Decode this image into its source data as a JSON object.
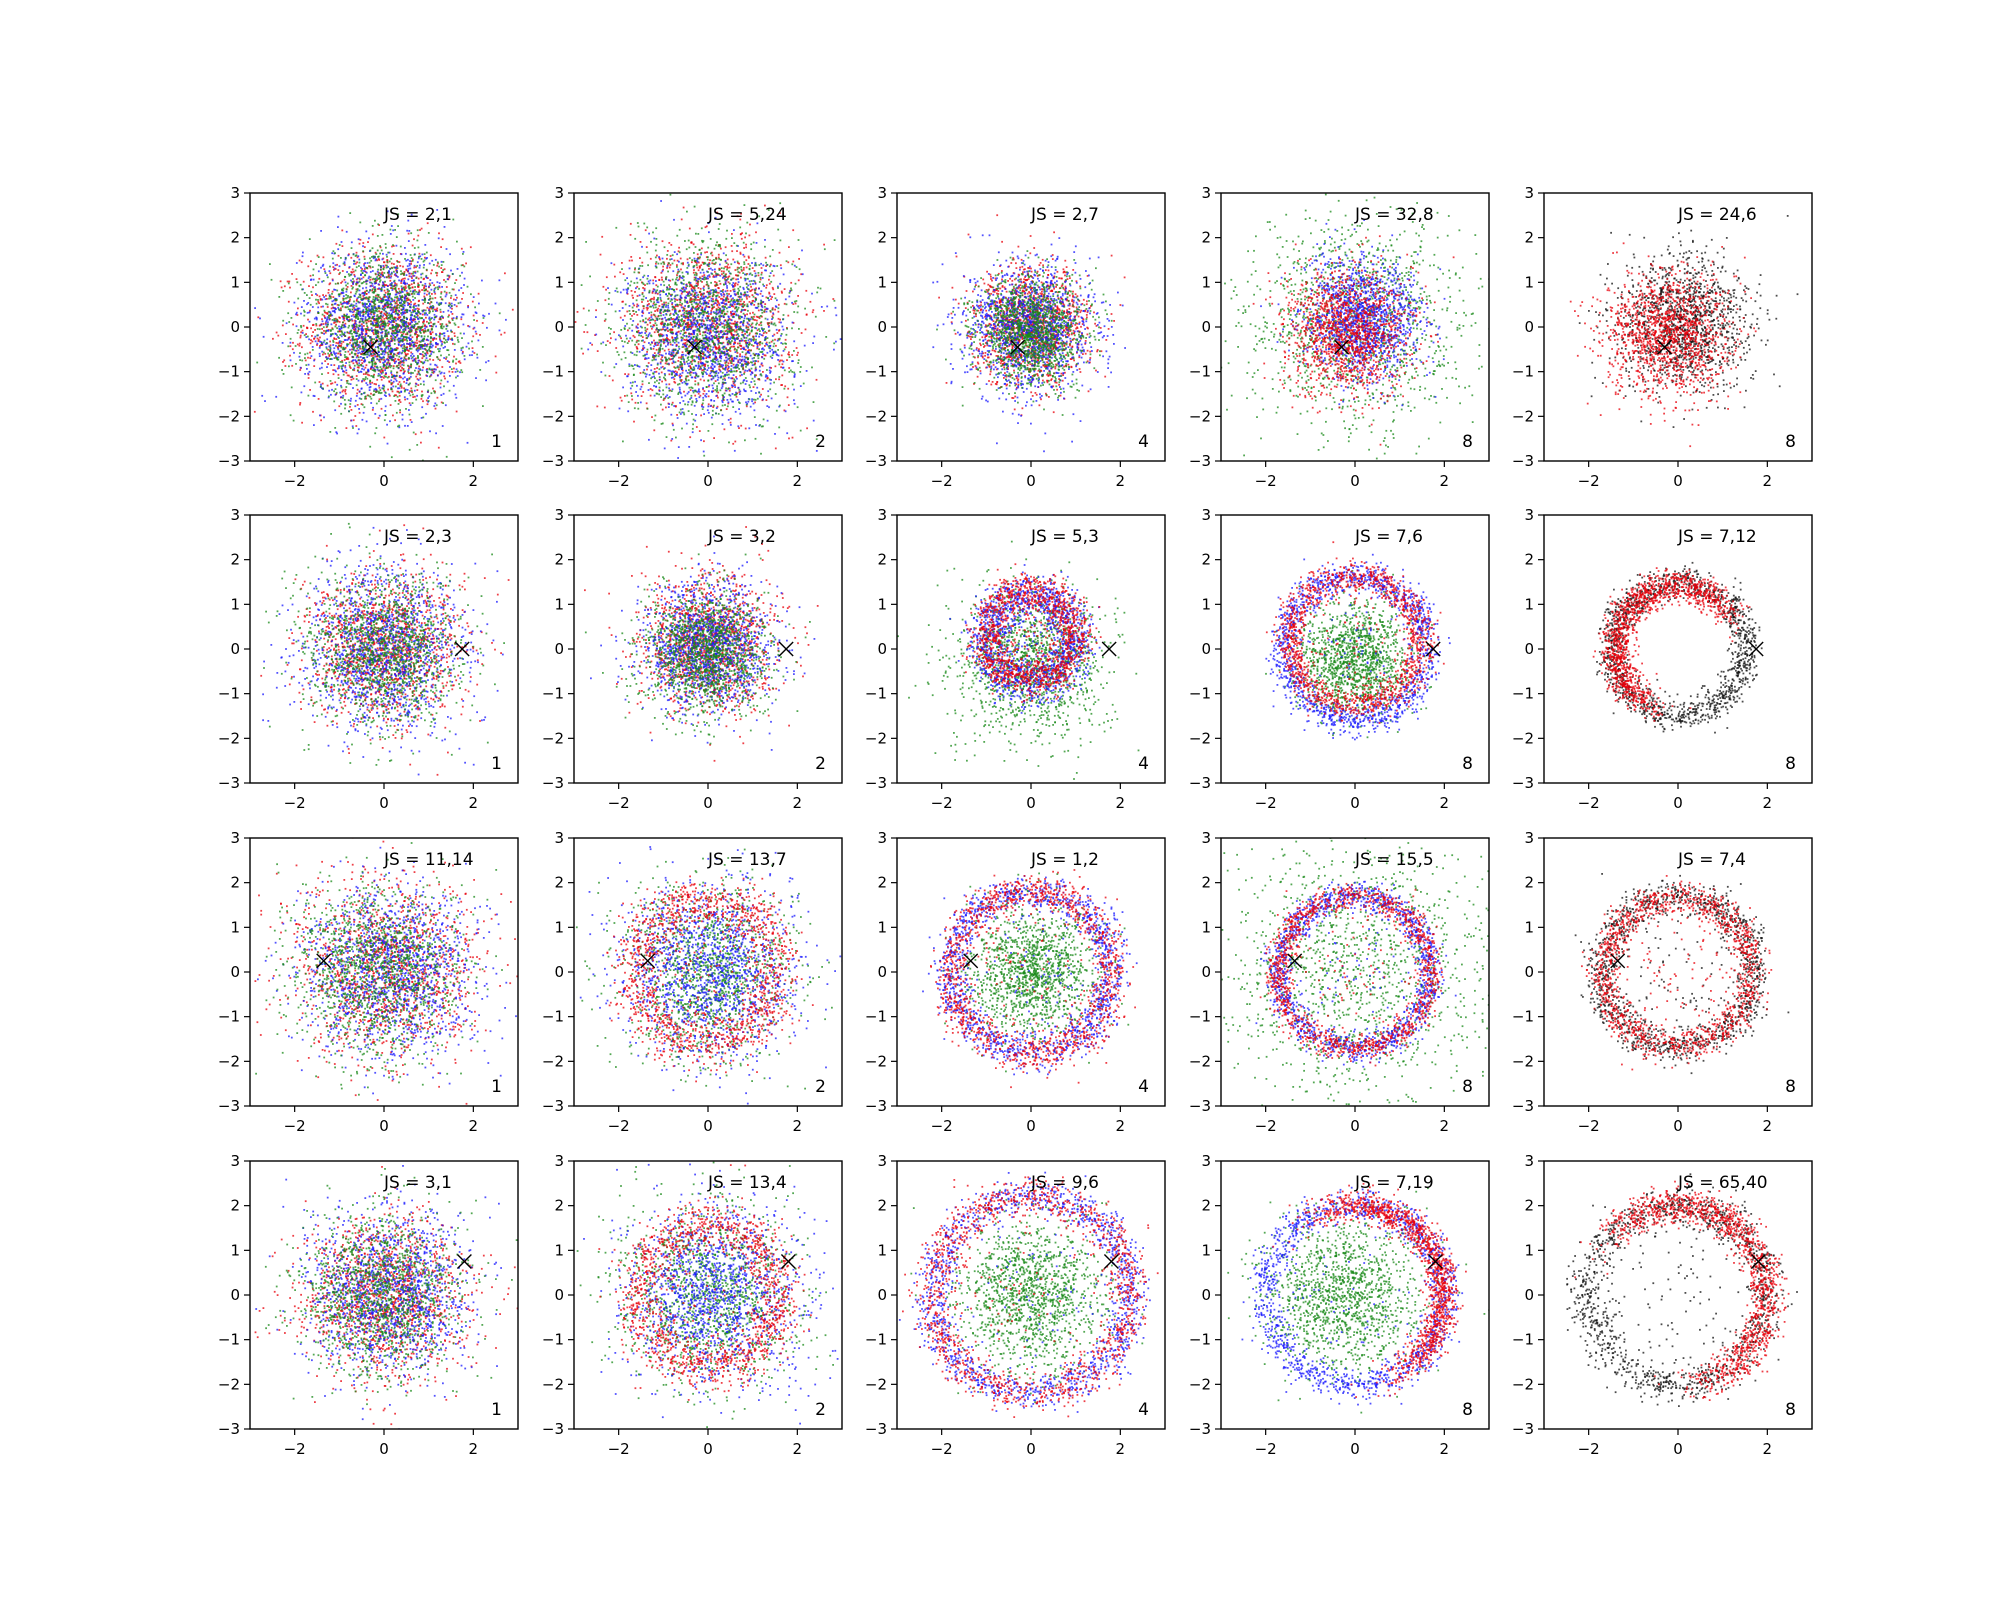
{
  "colors": {
    "red": "#e8000b",
    "blue": "#1a1aff",
    "green": "#1a8a1a",
    "black": "#111111"
  },
  "chart_data": [
    {
      "type": "scatter",
      "row": 1,
      "col": 1,
      "annotation": "JS = 2,1",
      "corner_label": "1",
      "xlim": [
        -3,
        3
      ],
      "ylim": [
        -3,
        3
      ],
      "xticks": [
        -2,
        0,
        2
      ],
      "yticks": [
        -3,
        -2,
        -1,
        0,
        1,
        2,
        3
      ],
      "marker": {
        "x": -0.3,
        "y": -0.45
      },
      "series": [
        {
          "color": "red",
          "shape": "disk",
          "center": [
            0,
            0
          ],
          "sigma": 0.9
        },
        {
          "color": "blue",
          "shape": "disk",
          "center": [
            0,
            0
          ],
          "sigma": 0.9
        },
        {
          "color": "green",
          "shape": "disk",
          "center": [
            0,
            0
          ],
          "sigma": 0.85
        }
      ]
    },
    {
      "type": "scatter",
      "row": 1,
      "col": 2,
      "annotation": "JS = 5,24",
      "corner_label": "2",
      "xlim": [
        -3,
        3
      ],
      "ylim": [
        -3,
        3
      ],
      "xticks": [
        -2,
        0,
        2
      ],
      "yticks": [
        -3,
        -2,
        -1,
        0,
        1,
        2,
        3
      ],
      "marker": {
        "x": -0.3,
        "y": -0.45
      },
      "series": [
        {
          "color": "red",
          "shape": "disk",
          "center": [
            0,
            0.1
          ],
          "sigma": 0.95
        },
        {
          "color": "blue",
          "shape": "disk",
          "center": [
            0,
            -0.2
          ],
          "sigma": 0.9
        },
        {
          "color": "green",
          "shape": "disk",
          "center": [
            0,
            0
          ],
          "sigma": 1.0
        }
      ]
    },
    {
      "type": "scatter",
      "row": 1,
      "col": 3,
      "annotation": "JS = 2,7",
      "corner_label": "4",
      "xlim": [
        -3,
        3
      ],
      "ylim": [
        -3,
        3
      ],
      "xticks": [
        -2,
        0,
        2
      ],
      "yticks": [
        -3,
        -2,
        -1,
        0,
        1,
        2,
        3
      ],
      "marker": {
        "x": -0.3,
        "y": -0.45
      },
      "series": [
        {
          "color": "red",
          "shape": "disk",
          "center": [
            0,
            0
          ],
          "sigma": 0.65
        },
        {
          "color": "blue",
          "shape": "disk",
          "center": [
            0,
            0
          ],
          "sigma": 0.7
        },
        {
          "color": "green",
          "shape": "disk",
          "center": [
            0,
            -0.1
          ],
          "sigma": 0.6
        }
      ]
    },
    {
      "type": "scatter",
      "row": 1,
      "col": 4,
      "annotation": "JS = 32,8",
      "corner_label": "8",
      "xlim": [
        -3,
        3
      ],
      "ylim": [
        -3,
        3
      ],
      "xticks": [
        -2,
        0,
        2
      ],
      "yticks": [
        -3,
        -2,
        -1,
        0,
        1,
        2,
        3
      ],
      "marker": {
        "x": -0.3,
        "y": -0.45
      },
      "series": [
        {
          "color": "green",
          "shape": "disk",
          "center": [
            0,
            0
          ],
          "sigma": 1.25
        },
        {
          "color": "blue",
          "shape": "disk",
          "center": [
            0.2,
            0.2
          ],
          "sigma": 0.65
        },
        {
          "color": "red",
          "shape": "disk",
          "center": [
            -0.15,
            -0.1
          ],
          "sigma": 0.7
        }
      ]
    },
    {
      "type": "scatter",
      "row": 1,
      "col": 5,
      "annotation": "JS = 24,6",
      "corner_label": "8",
      "xlim": [
        -3,
        3
      ],
      "ylim": [
        -3,
        3
      ],
      "xticks": [
        -2,
        0,
        2
      ],
      "yticks": [
        -3,
        -2,
        -1,
        0,
        1,
        2,
        3
      ],
      "marker": {
        "x": -0.3,
        "y": -0.45
      },
      "series": [
        {
          "color": "black",
          "shape": "disk",
          "center": [
            0.1,
            0.1
          ],
          "sigma": 0.75
        },
        {
          "color": "red",
          "shape": "disk",
          "center": [
            -0.25,
            -0.2
          ],
          "sigma": 0.7
        }
      ]
    },
    {
      "type": "scatter",
      "row": 2,
      "col": 1,
      "annotation": "JS = 2,3",
      "corner_label": "1",
      "xlim": [
        -3,
        3
      ],
      "ylim": [
        -3,
        3
      ],
      "xticks": [
        -2,
        0,
        2
      ],
      "yticks": [
        -3,
        -2,
        -1,
        0,
        1,
        2,
        3
      ],
      "marker": {
        "x": 1.75,
        "y": 0.0
      },
      "series": [
        {
          "color": "red",
          "shape": "disk",
          "center": [
            0,
            0
          ],
          "sigma": 0.85
        },
        {
          "color": "blue",
          "shape": "disk",
          "center": [
            0,
            0
          ],
          "sigma": 0.9
        },
        {
          "color": "green",
          "shape": "disk",
          "center": [
            0,
            0
          ],
          "sigma": 0.85
        }
      ]
    },
    {
      "type": "scatter",
      "row": 2,
      "col": 2,
      "annotation": "JS = 3,2",
      "corner_label": "2",
      "xlim": [
        -3,
        3
      ],
      "ylim": [
        -3,
        3
      ],
      "xticks": [
        -2,
        0,
        2
      ],
      "yticks": [
        -3,
        -2,
        -1,
        0,
        1,
        2,
        3
      ],
      "marker": {
        "x": 1.75,
        "y": 0.0
      },
      "series": [
        {
          "color": "red",
          "shape": "disk",
          "center": [
            0,
            0.1
          ],
          "sigma": 0.75
        },
        {
          "color": "blue",
          "shape": "disk",
          "center": [
            0,
            0
          ],
          "sigma": 0.7
        },
        {
          "color": "green",
          "shape": "disk",
          "center": [
            0,
            -0.1
          ],
          "sigma": 0.7
        }
      ]
    },
    {
      "type": "scatter",
      "row": 2,
      "col": 3,
      "annotation": "JS = 5,3",
      "corner_label": "4",
      "xlim": [
        -3,
        3
      ],
      "ylim": [
        -3,
        3
      ],
      "xticks": [
        -2,
        0,
        2
      ],
      "yticks": [
        -3,
        -2,
        -1,
        0,
        1,
        2,
        3
      ],
      "marker": {
        "x": 1.75,
        "y": 0.0
      },
      "series": [
        {
          "color": "green",
          "shape": "disk",
          "center": [
            0,
            -0.3
          ],
          "sigma": 0.85
        },
        {
          "color": "blue",
          "shape": "ring",
          "center": [
            0,
            0.2
          ],
          "radius": 1.0,
          "width": 0.5
        },
        {
          "color": "red",
          "shape": "ring",
          "center": [
            0,
            0.3
          ],
          "radius": 1.0,
          "width": 0.45
        }
      ]
    },
    {
      "type": "scatter",
      "row": 2,
      "col": 4,
      "annotation": "JS = 7,6",
      "corner_label": "8",
      "xlim": [
        -3,
        3
      ],
      "ylim": [
        -3,
        3
      ],
      "xticks": [
        -2,
        0,
        2
      ],
      "yticks": [
        -3,
        -2,
        -1,
        0,
        1,
        2,
        3
      ],
      "marker": {
        "x": 1.75,
        "y": 0.0
      },
      "series": [
        {
          "color": "green",
          "shape": "disk",
          "center": [
            0,
            -0.2
          ],
          "sigma": 0.6
        },
        {
          "color": "blue",
          "shape": "ring",
          "center": [
            0,
            0
          ],
          "radius": 1.6,
          "width": 0.35
        },
        {
          "color": "red",
          "shape": "ring",
          "center": [
            0,
            0.2
          ],
          "radius": 1.45,
          "width": 0.35
        }
      ]
    },
    {
      "type": "scatter",
      "row": 2,
      "col": 5,
      "annotation": "JS = 7,12",
      "corner_label": "8",
      "xlim": [
        -3,
        3
      ],
      "ylim": [
        -3,
        3
      ],
      "xticks": [
        -2,
        0,
        2
      ],
      "yticks": [
        -3,
        -2,
        -1,
        0,
        1,
        2,
        3
      ],
      "marker": {
        "x": 1.75,
        "y": 0.0
      },
      "series": [
        {
          "color": "black",
          "shape": "arc",
          "center": [
            0,
            0
          ],
          "radius": 1.5,
          "width": 0.35,
          "from": 0,
          "to": 360,
          "bias_to": 110
        },
        {
          "color": "red",
          "shape": "arc",
          "center": [
            0,
            0
          ],
          "radius": 1.4,
          "width": 0.35,
          "from": 40,
          "to": 240
        }
      ]
    },
    {
      "type": "scatter",
      "row": 3,
      "col": 1,
      "annotation": "JS = 11,14",
      "corner_label": "1",
      "xlim": [
        -3,
        3
      ],
      "ylim": [
        -3,
        3
      ],
      "xticks": [
        -2,
        0,
        2
      ],
      "yticks": [
        -3,
        -2,
        -1,
        0,
        1,
        2,
        3
      ],
      "marker": {
        "x": -1.35,
        "y": 0.25
      },
      "series": [
        {
          "color": "red",
          "shape": "disk",
          "center": [
            0,
            0
          ],
          "sigma": 1.0
        },
        {
          "color": "blue",
          "shape": "disk",
          "center": [
            0.2,
            0
          ],
          "sigma": 0.95
        },
        {
          "color": "green",
          "shape": "disk",
          "center": [
            -0.2,
            0
          ],
          "sigma": 0.95
        }
      ]
    },
    {
      "type": "scatter",
      "row": 3,
      "col": 2,
      "annotation": "JS = 13,7",
      "corner_label": "2",
      "xlim": [
        -3,
        3
      ],
      "ylim": [
        -3,
        3
      ],
      "xticks": [
        -2,
        0,
        2
      ],
      "yticks": [
        -3,
        -2,
        -1,
        0,
        1,
        2,
        3
      ],
      "marker": {
        "x": -1.35,
        "y": 0.25
      },
      "series": [
        {
          "color": "green",
          "shape": "disk",
          "center": [
            0,
            0
          ],
          "sigma": 0.95
        },
        {
          "color": "blue",
          "shape": "disk",
          "center": [
            0,
            0
          ],
          "sigma": 1.0
        },
        {
          "color": "red",
          "shape": "ring",
          "center": [
            0,
            0
          ],
          "radius": 1.6,
          "width": 0.6
        }
      ]
    },
    {
      "type": "scatter",
      "row": 3,
      "col": 3,
      "annotation": "JS = 1,2",
      "corner_label": "4",
      "xlim": [
        -3,
        3
      ],
      "ylim": [
        -3,
        3
      ],
      "xticks": [
        -2,
        0,
        2
      ],
      "yticks": [
        -3,
        -2,
        -1,
        0,
        1,
        2,
        3
      ],
      "marker": {
        "x": -1.35,
        "y": 0.25
      },
      "series": [
        {
          "color": "green",
          "shape": "disk",
          "center": [
            0,
            0
          ],
          "sigma": 0.7
        },
        {
          "color": "blue",
          "shape": "ring",
          "center": [
            0,
            0
          ],
          "radius": 1.8,
          "width": 0.4
        },
        {
          "color": "red",
          "shape": "ring",
          "center": [
            0,
            0
          ],
          "radius": 1.8,
          "width": 0.4
        }
      ]
    },
    {
      "type": "scatter",
      "row": 3,
      "col": 4,
      "annotation": "JS = 15,5",
      "corner_label": "8",
      "xlim": [
        -3,
        3
      ],
      "ylim": [
        -3,
        3
      ],
      "xticks": [
        -2,
        0,
        2
      ],
      "yticks": [
        -3,
        -2,
        -1,
        0,
        1,
        2,
        3
      ],
      "marker": {
        "x": -1.35,
        "y": 0.25
      },
      "series": [
        {
          "color": "green",
          "shape": "disk",
          "center": [
            0,
            0
          ],
          "sigma": 1.6
        },
        {
          "color": "blue",
          "shape": "ring",
          "center": [
            0,
            0
          ],
          "radius": 1.7,
          "width": 0.3
        },
        {
          "color": "red",
          "shape": "ring",
          "center": [
            0,
            0
          ],
          "radius": 1.7,
          "width": 0.3
        }
      ]
    },
    {
      "type": "scatter",
      "row": 3,
      "col": 5,
      "annotation": "JS = 7,4",
      "corner_label": "8",
      "xlim": [
        -3,
        3
      ],
      "ylim": [
        -3,
        3
      ],
      "xticks": [
        -2,
        0,
        2
      ],
      "yticks": [
        -3,
        -2,
        -1,
        0,
        1,
        2,
        3
      ],
      "marker": {
        "x": -1.35,
        "y": 0.25
      },
      "series": [
        {
          "color": "black",
          "shape": "ring",
          "center": [
            0,
            0
          ],
          "radius": 1.7,
          "width": 0.4
        },
        {
          "color": "red",
          "shape": "ring",
          "center": [
            0,
            0
          ],
          "radius": 1.65,
          "width": 0.35
        }
      ]
    },
    {
      "type": "scatter",
      "row": 4,
      "col": 1,
      "annotation": "JS = 3,1",
      "corner_label": "1",
      "xlim": [
        -3,
        3
      ],
      "ylim": [
        -3,
        3
      ],
      "xticks": [
        -2,
        0,
        2
      ],
      "yticks": [
        -3,
        -2,
        -1,
        0,
        1,
        2,
        3
      ],
      "marker": {
        "x": 1.8,
        "y": 0.75
      },
      "series": [
        {
          "color": "red",
          "shape": "disk",
          "center": [
            0,
            0
          ],
          "sigma": 0.9
        },
        {
          "color": "blue",
          "shape": "disk",
          "center": [
            0.1,
            0
          ],
          "sigma": 0.9
        },
        {
          "color": "green",
          "shape": "disk",
          "center": [
            -0.1,
            0
          ],
          "sigma": 0.9
        }
      ]
    },
    {
      "type": "scatter",
      "row": 4,
      "col": 2,
      "annotation": "JS = 13,4",
      "corner_label": "2",
      "xlim": [
        -3,
        3
      ],
      "ylim": [
        -3,
        3
      ],
      "xticks": [
        -2,
        0,
        2
      ],
      "yticks": [
        -3,
        -2,
        -1,
        0,
        1,
        2,
        3
      ],
      "marker": {
        "x": 1.8,
        "y": 0.75
      },
      "series": [
        {
          "color": "green",
          "shape": "disk",
          "center": [
            0,
            0
          ],
          "sigma": 1.0
        },
        {
          "color": "blue",
          "shape": "disk",
          "center": [
            0.2,
            0
          ],
          "sigma": 1.0
        },
        {
          "color": "red",
          "shape": "ring",
          "center": [
            0,
            0
          ],
          "radius": 1.6,
          "width": 0.55
        }
      ]
    },
    {
      "type": "scatter",
      "row": 4,
      "col": 3,
      "annotation": "JS = 9,6",
      "corner_label": "4",
      "xlim": [
        -3,
        3
      ],
      "ylim": [
        -3,
        3
      ],
      "xticks": [
        -2,
        0,
        2
      ],
      "yticks": [
        -3,
        -2,
        -1,
        0,
        1,
        2,
        3
      ],
      "marker": {
        "x": 1.8,
        "y": 0.75
      },
      "series": [
        {
          "color": "green",
          "shape": "disk",
          "center": [
            0,
            0
          ],
          "sigma": 0.8
        },
        {
          "color": "blue",
          "shape": "ring",
          "center": [
            0,
            0
          ],
          "radius": 2.2,
          "width": 0.4
        },
        {
          "color": "red",
          "shape": "ring",
          "center": [
            0,
            0
          ],
          "radius": 2.2,
          "width": 0.45
        }
      ]
    },
    {
      "type": "scatter",
      "row": 4,
      "col": 4,
      "annotation": "JS = 7,19",
      "corner_label": "8",
      "xlim": [
        -3,
        3
      ],
      "ylim": [
        -3,
        3
      ],
      "xticks": [
        -2,
        0,
        2
      ],
      "yticks": [
        -3,
        -2,
        -1,
        0,
        1,
        2,
        3
      ],
      "marker": {
        "x": 1.8,
        "y": 0.75
      },
      "series": [
        {
          "color": "green",
          "shape": "disk",
          "center": [
            -0.3,
            0
          ],
          "sigma": 0.85
        },
        {
          "color": "blue",
          "shape": "ring",
          "center": [
            0,
            0
          ],
          "radius": 2.0,
          "width": 0.35
        },
        {
          "color": "red",
          "shape": "arc",
          "center": [
            0,
            0
          ],
          "radius": 2.0,
          "width": 0.35,
          "from": -60,
          "to": 110
        }
      ]
    },
    {
      "type": "scatter",
      "row": 4,
      "col": 5,
      "annotation": "JS = 65,40",
      "corner_label": "8",
      "xlim": [
        -3,
        3
      ],
      "ylim": [
        -3,
        3
      ],
      "xticks": [
        -2,
        0,
        2
      ],
      "yticks": [
        -3,
        -2,
        -1,
        0,
        1,
        2,
        3
      ],
      "marker": {
        "x": 1.8,
        "y": 0.75
      },
      "series": [
        {
          "color": "black",
          "shape": "ring",
          "center": [
            0,
            0
          ],
          "radius": 2.0,
          "width": 0.45
        },
        {
          "color": "red",
          "shape": "arc",
          "center": [
            0,
            0
          ],
          "radius": 2.0,
          "width": 0.4,
          "from": -70,
          "to": 130
        }
      ]
    }
  ]
}
